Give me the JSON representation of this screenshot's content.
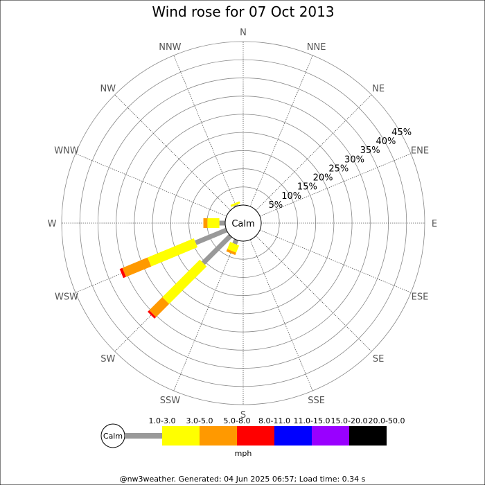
{
  "chart_data": {
    "type": "wind-rose",
    "title": "Wind rose for 07 Oct 2013",
    "directions": [
      "N",
      "NNE",
      "NE",
      "ENE",
      "E",
      "ESE",
      "SE",
      "SSE",
      "S",
      "SSW",
      "SW",
      "WSW",
      "W",
      "WNW",
      "NW",
      "NNW"
    ],
    "rings": [
      "5%",
      "10%",
      "15%",
      "20%",
      "25%",
      "30%",
      "35%",
      "40%",
      "45%"
    ],
    "ring_values": [
      5,
      10,
      15,
      20,
      25,
      30,
      35,
      40,
      45
    ],
    "rmax": 45,
    "calm_label": "Calm",
    "speed_bins": [
      {
        "label": "1.0-3.0",
        "color": "#999999"
      },
      {
        "label": "3.0-5.0",
        "color": "#ffff00"
      },
      {
        "label": "5.0-8.0",
        "color": "#ff9900"
      },
      {
        "label": "8.0-11.0",
        "color": "#ff0000"
      },
      {
        "label": "11.0-15.0",
        "color": "#0000ff"
      },
      {
        "label": "15.0-20.0",
        "color": "#9900ff"
      },
      {
        "label": "20.0-50.0",
        "color": "#000000"
      }
    ],
    "units": "mph",
    "series": [
      {
        "direction": "NNW",
        "values": [
          0.4,
          0.6,
          0,
          0,
          0,
          0,
          0
        ]
      },
      {
        "direction": "W",
        "values": [
          1.6,
          3.3,
          1.1,
          0,
          0,
          0,
          0
        ]
      },
      {
        "direction": "WSW",
        "values": [
          9.2,
          13.8,
          7.5,
          0.8,
          0,
          0,
          0
        ]
      },
      {
        "direction": "SW",
        "values": [
          10.6,
          14.6,
          5.1,
          0.6,
          0,
          0,
          0
        ]
      },
      {
        "direction": "SSW",
        "values": [
          1.2,
          2.1,
          0.7,
          0,
          0,
          0,
          0
        ]
      }
    ]
  },
  "footer": "@nw3weather. Generated: 04 Jun 2025 06:57; Load time: 0.34 s"
}
